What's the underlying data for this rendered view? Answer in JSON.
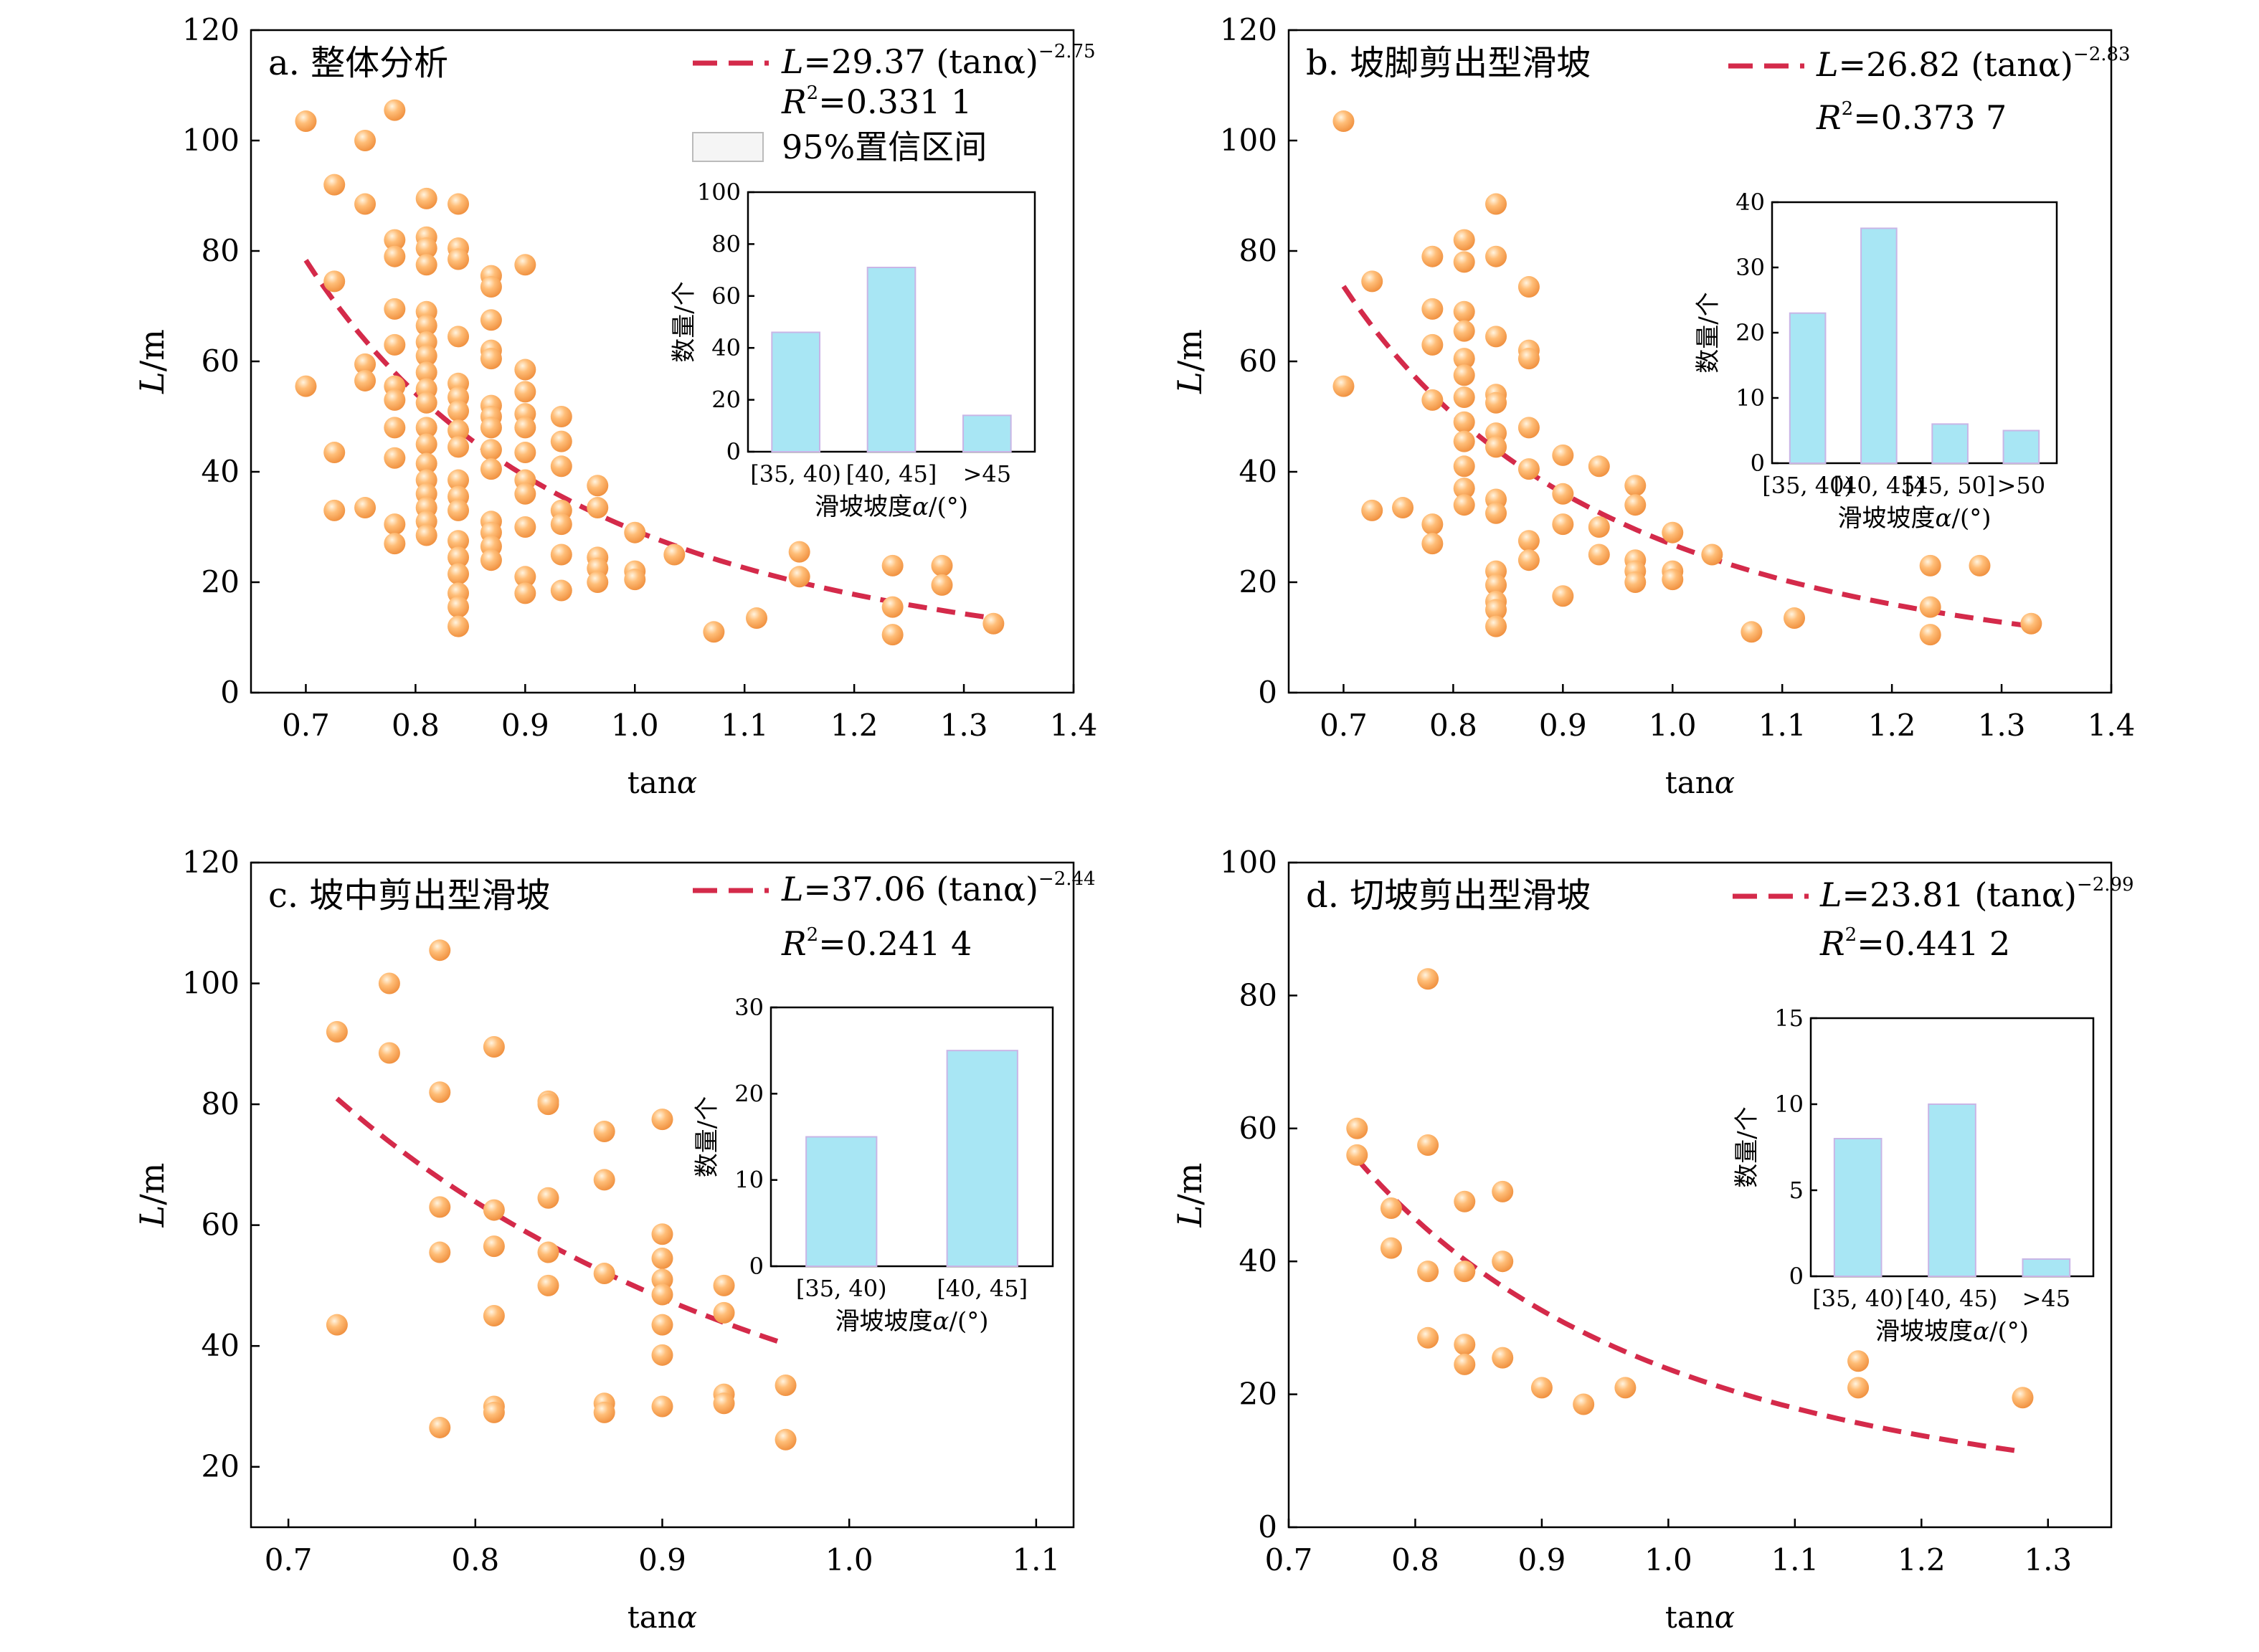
{
  "chart_data": [
    {
      "type": "scatter",
      "title": "a. 整体分析",
      "xlabel": "tanα",
      "ylabel": "L/m",
      "xlim": [
        0.65,
        1.4
      ],
      "ylim": [
        0,
        120
      ],
      "xticks": [
        "0.7",
        "0.8",
        "0.9",
        "1.0",
        "1.1",
        "1.2",
        "1.3",
        "1.4"
      ],
      "yticks": [
        "0",
        "20",
        "40",
        "60",
        "80",
        "100",
        "120"
      ],
      "grid": false,
      "legend_position": "top-right",
      "fit": {
        "a": 29.37,
        "b": -2.75,
        "x_range": [
          0.7,
          1.33
        ]
      },
      "legend": {
        "fit_prefix": "L",
        "fit_formula": "=29.37 (tanα)",
        "fit_exp": "−2.75",
        "r2_prefix": "R",
        "r2_value": "=0.331 1",
        "ci_label": "95%置信区间"
      },
      "points": [
        [
          0.7,
          103.5
        ],
        [
          0.7,
          55.5
        ],
        [
          0.726,
          92
        ],
        [
          0.726,
          74.5
        ],
        [
          0.726,
          43.5
        ],
        [
          0.726,
          33
        ],
        [
          0.754,
          100
        ],
        [
          0.754,
          88.5
        ],
        [
          0.754,
          59.5
        ],
        [
          0.754,
          56.5
        ],
        [
          0.754,
          33.5
        ],
        [
          0.781,
          105.5
        ],
        [
          0.781,
          82
        ],
        [
          0.781,
          79
        ],
        [
          0.781,
          69.5
        ],
        [
          0.781,
          63
        ],
        [
          0.781,
          55.5
        ],
        [
          0.781,
          53
        ],
        [
          0.781,
          48
        ],
        [
          0.781,
          42.5
        ],
        [
          0.781,
          30.5
        ],
        [
          0.781,
          27
        ],
        [
          0.81,
          89.5
        ],
        [
          0.81,
          82.5
        ],
        [
          0.81,
          80.5
        ],
        [
          0.81,
          77.5
        ],
        [
          0.81,
          69
        ],
        [
          0.81,
          66.5
        ],
        [
          0.81,
          63.5
        ],
        [
          0.81,
          61
        ],
        [
          0.81,
          58
        ],
        [
          0.81,
          55
        ],
        [
          0.81,
          52.5
        ],
        [
          0.81,
          48
        ],
        [
          0.81,
          45
        ],
        [
          0.81,
          41.5
        ],
        [
          0.81,
          38.5
        ],
        [
          0.81,
          36
        ],
        [
          0.81,
          33.5
        ],
        [
          0.81,
          31
        ],
        [
          0.81,
          28.5
        ],
        [
          0.839,
          88.5
        ],
        [
          0.839,
          80.5
        ],
        [
          0.839,
          78.5
        ],
        [
          0.839,
          64.5
        ],
        [
          0.839,
          56
        ],
        [
          0.839,
          53.5
        ],
        [
          0.839,
          51
        ],
        [
          0.839,
          47.5
        ],
        [
          0.839,
          44.5
        ],
        [
          0.839,
          38.5
        ],
        [
          0.839,
          35.5
        ],
        [
          0.839,
          33
        ],
        [
          0.839,
          27.5
        ],
        [
          0.839,
          24.5
        ],
        [
          0.839,
          21.5
        ],
        [
          0.839,
          18
        ],
        [
          0.839,
          15.5
        ],
        [
          0.839,
          12
        ],
        [
          0.869,
          75.5
        ],
        [
          0.869,
          73.5
        ],
        [
          0.869,
          67.5
        ],
        [
          0.869,
          62
        ],
        [
          0.869,
          60.5
        ],
        [
          0.869,
          52
        ],
        [
          0.869,
          50
        ],
        [
          0.869,
          48
        ],
        [
          0.869,
          44
        ],
        [
          0.869,
          40.5
        ],
        [
          0.869,
          31
        ],
        [
          0.869,
          29
        ],
        [
          0.869,
          26.5
        ],
        [
          0.869,
          24
        ],
        [
          0.9,
          77.5
        ],
        [
          0.9,
          58.5
        ],
        [
          0.9,
          54.5
        ],
        [
          0.9,
          50.5
        ],
        [
          0.9,
          48
        ],
        [
          0.9,
          43.5
        ],
        [
          0.9,
          38.5
        ],
        [
          0.9,
          36
        ],
        [
          0.9,
          30
        ],
        [
          0.9,
          21
        ],
        [
          0.9,
          18
        ],
        [
          0.933,
          50
        ],
        [
          0.933,
          45.5
        ],
        [
          0.933,
          41
        ],
        [
          0.933,
          33
        ],
        [
          0.933,
          30.5
        ],
        [
          0.933,
          25
        ],
        [
          0.933,
          18.5
        ],
        [
          0.966,
          37.5
        ],
        [
          0.966,
          33.5
        ],
        [
          0.966,
          24.5
        ],
        [
          0.966,
          22.5
        ],
        [
          0.966,
          20
        ],
        [
          1.0,
          29
        ],
        [
          1.0,
          22
        ],
        [
          1.0,
          20.5
        ],
        [
          1.036,
          25
        ],
        [
          1.072,
          11
        ],
        [
          1.111,
          13.5
        ],
        [
          1.15,
          25.5
        ],
        [
          1.15,
          21
        ],
        [
          1.235,
          23
        ],
        [
          1.235,
          15.5
        ],
        [
          1.235,
          10.5
        ],
        [
          1.28,
          23
        ],
        [
          1.28,
          19.5
        ],
        [
          1.327,
          12.5
        ]
      ],
      "inset": {
        "type": "bar",
        "xlabel": "滑坡坡度α/(°)",
        "ylabel": "数量/个",
        "ylim": [
          0,
          100
        ],
        "yticks": [
          "0",
          "20",
          "40",
          "60",
          "80",
          "100"
        ],
        "categories": [
          "[35, 40)",
          "[40, 45]",
          ">45"
        ],
        "values": [
          46,
          71,
          14
        ]
      }
    },
    {
      "type": "scatter",
      "title": "b. 坡脚剪出型滑坡",
      "xlabel": "tanα",
      "ylabel": "L/m",
      "xlim": [
        0.65,
        1.4
      ],
      "ylim": [
        0,
        120
      ],
      "xticks": [
        "0.7",
        "0.8",
        "0.9",
        "1.0",
        "1.1",
        "1.2",
        "1.3",
        "1.4"
      ],
      "yticks": [
        "0",
        "20",
        "40",
        "60",
        "80",
        "100",
        "120"
      ],
      "grid": false,
      "legend_position": "top-right",
      "fit": {
        "a": 26.82,
        "b": -2.83,
        "x_range": [
          0.7,
          1.33
        ]
      },
      "legend": {
        "fit_prefix": "L",
        "fit_formula": "=26.82 (tanα)",
        "fit_exp": "−2.83",
        "r2_prefix": "R",
        "r2_value": "=0.373 7"
      },
      "points": [
        [
          0.7,
          103.5
        ],
        [
          0.7,
          55.5
        ],
        [
          0.726,
          74.5
        ],
        [
          0.726,
          33
        ],
        [
          0.754,
          33.5
        ],
        [
          0.781,
          79
        ],
        [
          0.781,
          69.5
        ],
        [
          0.781,
          63
        ],
        [
          0.781,
          53
        ],
        [
          0.781,
          30.5
        ],
        [
          0.781,
          27
        ],
        [
          0.81,
          82
        ],
        [
          0.81,
          78
        ],
        [
          0.81,
          69
        ],
        [
          0.81,
          65.5
        ],
        [
          0.81,
          60.5
        ],
        [
          0.81,
          57.5
        ],
        [
          0.81,
          53.5
        ],
        [
          0.81,
          49
        ],
        [
          0.81,
          45.5
        ],
        [
          0.81,
          41
        ],
        [
          0.81,
          37
        ],
        [
          0.81,
          34
        ],
        [
          0.839,
          88.5
        ],
        [
          0.839,
          79
        ],
        [
          0.839,
          64.5
        ],
        [
          0.839,
          54
        ],
        [
          0.839,
          52.5
        ],
        [
          0.839,
          47
        ],
        [
          0.839,
          44.5
        ],
        [
          0.839,
          35
        ],
        [
          0.839,
          32.5
        ],
        [
          0.839,
          22
        ],
        [
          0.839,
          19.5
        ],
        [
          0.839,
          16.5
        ],
        [
          0.839,
          15
        ],
        [
          0.839,
          12
        ],
        [
          0.869,
          73.5
        ],
        [
          0.869,
          62
        ],
        [
          0.869,
          60.5
        ],
        [
          0.869,
          48
        ],
        [
          0.869,
          40.5
        ],
        [
          0.869,
          27.5
        ],
        [
          0.869,
          24
        ],
        [
          0.9,
          43
        ],
        [
          0.9,
          36
        ],
        [
          0.9,
          30.5
        ],
        [
          0.9,
          17.5
        ],
        [
          0.933,
          41
        ],
        [
          0.933,
          30
        ],
        [
          0.933,
          25
        ],
        [
          0.966,
          37.5
        ],
        [
          0.966,
          34
        ],
        [
          0.966,
          24
        ],
        [
          0.966,
          22
        ],
        [
          0.966,
          20
        ],
        [
          1.0,
          29
        ],
        [
          1.0,
          22
        ],
        [
          1.0,
          20.5
        ],
        [
          1.036,
          25
        ],
        [
          1.072,
          11
        ],
        [
          1.111,
          13.5
        ],
        [
          1.235,
          23
        ],
        [
          1.235,
          15.5
        ],
        [
          1.235,
          10.5
        ],
        [
          1.28,
          23
        ],
        [
          1.327,
          12.5
        ]
      ],
      "inset": {
        "type": "bar",
        "xlabel": "滑坡坡度α/(°)",
        "ylabel": "数量/个",
        "ylim": [
          0,
          40
        ],
        "yticks": [
          "0",
          "10",
          "20",
          "30",
          "40"
        ],
        "categories": [
          "[35, 40)",
          "[40, 45)",
          "[45, 50]",
          ">50"
        ],
        "values": [
          23,
          36,
          6,
          5
        ]
      }
    },
    {
      "type": "scatter",
      "title": "c. 坡中剪出型滑坡",
      "xlabel": "tanα",
      "ylabel": "L/m",
      "xlim": [
        0.68,
        1.12
      ],
      "ylim": [
        10,
        120
      ],
      "xticks": [
        "0.7",
        "0.8",
        "0.9",
        "1.0",
        "1.1"
      ],
      "yticks": [
        "20",
        "40",
        "60",
        "80",
        "100",
        "120"
      ],
      "grid": false,
      "legend_position": "top-right",
      "fit": {
        "a": 37.06,
        "b": -2.44,
        "x_range": [
          0.726,
          0.966
        ]
      },
      "legend": {
        "fit_prefix": "L",
        "fit_formula": "=37.06 (tanα)",
        "fit_exp": "−2.44",
        "r2_prefix": "R",
        "r2_value": "=0.241 4"
      },
      "points": [
        [
          0.726,
          92
        ],
        [
          0.726,
          43.5
        ],
        [
          0.754,
          100
        ],
        [
          0.754,
          88.5
        ],
        [
          0.781,
          105.5
        ],
        [
          0.781,
          82
        ],
        [
          0.781,
          63
        ],
        [
          0.781,
          55.5
        ],
        [
          0.781,
          26.5
        ],
        [
          0.81,
          89.5
        ],
        [
          0.81,
          62.5
        ],
        [
          0.81,
          56.5
        ],
        [
          0.81,
          45
        ],
        [
          0.81,
          30
        ],
        [
          0.81,
          29
        ],
        [
          0.839,
          80.5
        ],
        [
          0.839,
          80
        ],
        [
          0.839,
          64.5
        ],
        [
          0.839,
          55.5
        ],
        [
          0.839,
          50
        ],
        [
          0.869,
          75.5
        ],
        [
          0.869,
          67.5
        ],
        [
          0.869,
          52
        ],
        [
          0.869,
          30.5
        ],
        [
          0.869,
          29
        ],
        [
          0.9,
          77.5
        ],
        [
          0.9,
          58.5
        ],
        [
          0.9,
          54.5
        ],
        [
          0.9,
          51
        ],
        [
          0.9,
          48.5
        ],
        [
          0.9,
          43.5
        ],
        [
          0.9,
          38.5
        ],
        [
          0.9,
          30
        ],
        [
          0.933,
          50
        ],
        [
          0.933,
          45.5
        ],
        [
          0.933,
          32
        ],
        [
          0.933,
          30.5
        ],
        [
          0.966,
          33.5
        ],
        [
          0.966,
          24.5
        ]
      ],
      "inset": {
        "type": "bar",
        "xlabel": "滑坡坡度α/(°)",
        "ylabel": "数量/个",
        "ylim": [
          0,
          30
        ],
        "yticks": [
          "0",
          "10",
          "20",
          "30"
        ],
        "categories": [
          "[35, 40)",
          "[40, 45]"
        ],
        "values": [
          15,
          25
        ]
      }
    },
    {
      "type": "scatter",
      "title": "d. 切坡剪出型滑坡",
      "xlabel": "tanα",
      "ylabel": "L/m",
      "xlim": [
        0.7,
        1.35
      ],
      "ylim": [
        0,
        100
      ],
      "xticks": [
        "0.7",
        "0.8",
        "0.9",
        "1.0",
        "1.1",
        "1.2",
        "1.3"
      ],
      "yticks": [
        "0",
        "20",
        "40",
        "60",
        "80",
        "100"
      ],
      "grid": false,
      "legend_position": "top-right",
      "fit": {
        "a": 23.81,
        "b": -2.99,
        "x_range": [
          0.754,
          1.28
        ]
      },
      "legend": {
        "fit_prefix": "L",
        "fit_formula": "=23.81 (tanα)",
        "fit_exp": "−2.99",
        "r2_prefix": "R",
        "r2_value": "=0.441 2"
      },
      "points": [
        [
          0.754,
          60
        ],
        [
          0.754,
          56
        ],
        [
          0.781,
          48
        ],
        [
          0.781,
          42
        ],
        [
          0.81,
          82.5
        ],
        [
          0.81,
          57.5
        ],
        [
          0.81,
          38.5
        ],
        [
          0.81,
          28.5
        ],
        [
          0.839,
          49
        ],
        [
          0.839,
          38.5
        ],
        [
          0.839,
          27.5
        ],
        [
          0.839,
          24.5
        ],
        [
          0.869,
          50.5
        ],
        [
          0.869,
          40
        ],
        [
          0.869,
          25.5
        ],
        [
          0.9,
          21
        ],
        [
          0.933,
          18.5
        ],
        [
          0.966,
          21
        ],
        [
          1.15,
          25
        ],
        [
          1.15,
          21
        ],
        [
          1.28,
          19.5
        ]
      ],
      "inset": {
        "type": "bar",
        "xlabel": "滑坡坡度α/(°)",
        "ylabel": "数量/个",
        "ylim": [
          0,
          15
        ],
        "yticks": [
          "0",
          "5",
          "10",
          "15"
        ],
        "categories": [
          "[35, 40)",
          "[40, 45)",
          ">45"
        ],
        "values": [
          8,
          10,
          1
        ]
      }
    }
  ]
}
